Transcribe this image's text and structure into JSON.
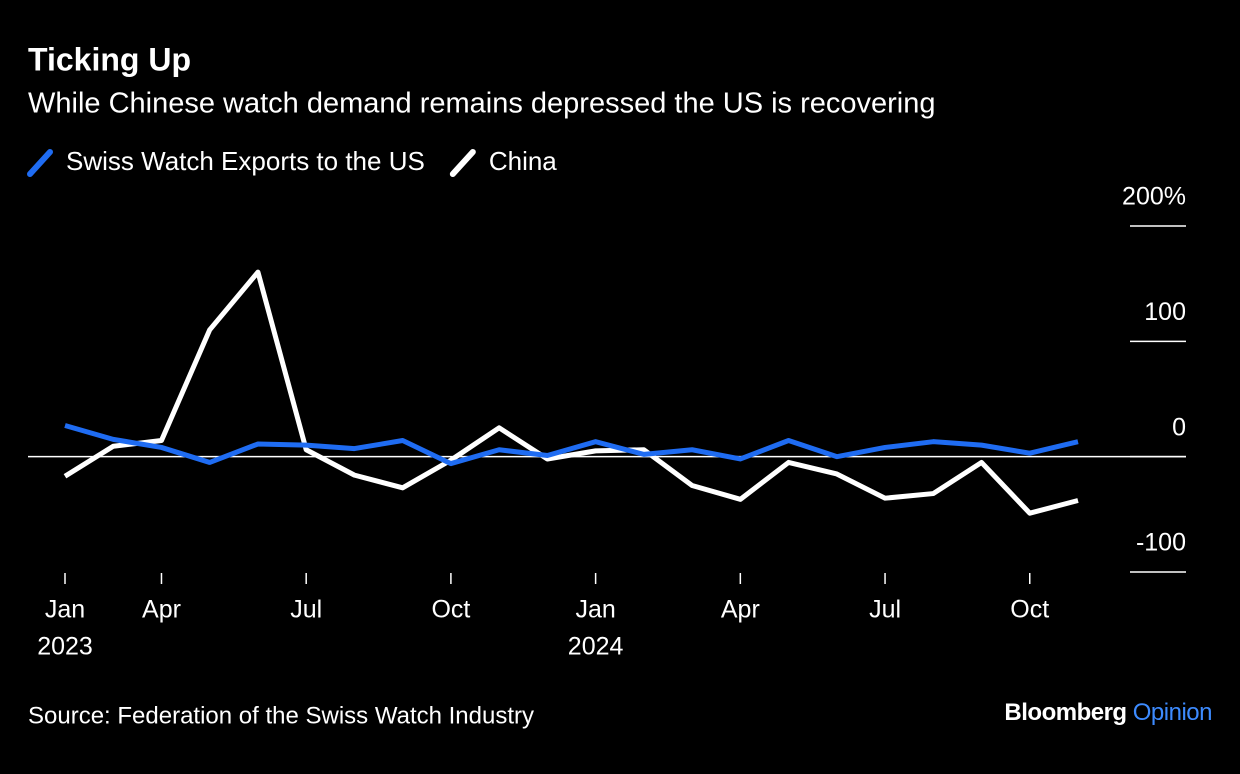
{
  "chart_data": {
    "type": "line",
    "title": "Ticking Up",
    "subtitle": "While Chinese watch demand remains depressed the US is recovering",
    "x": [
      0,
      1,
      2,
      3,
      4,
      5,
      6,
      7,
      8,
      9,
      10,
      11,
      12,
      13,
      14,
      15,
      16,
      17,
      18,
      19,
      20,
      21
    ],
    "xlim": [
      0,
      21
    ],
    "xticks": [
      {
        "value": 0,
        "label": "Jan"
      },
      {
        "value": 2,
        "label": "Apr"
      },
      {
        "value": 5,
        "label": "Jul"
      },
      {
        "value": 8,
        "label": "Oct"
      },
      {
        "value": 11,
        "label": "Jan"
      },
      {
        "value": 14,
        "label": "Apr"
      },
      {
        "value": 17,
        "label": "Jul"
      },
      {
        "value": 20,
        "label": "Oct"
      }
    ],
    "x_sublabels": [
      {
        "value": 0,
        "label": "2023"
      },
      {
        "value": 11,
        "label": "2024"
      }
    ],
    "ylim": [
      -100,
      200
    ],
    "yticks": [
      {
        "value": 200,
        "label": "200%"
      },
      100,
      0,
      -100
    ],
    "series": [
      {
        "name": "Swiss Watch Exports to the US",
        "color": "#1f6cf2",
        "values": [
          27,
          15,
          8,
          -5,
          11,
          10,
          7,
          14,
          -6,
          6,
          1,
          13,
          2,
          6,
          -2,
          14,
          0,
          8,
          13,
          10,
          3,
          13
        ]
      },
      {
        "name": "China",
        "color": "#ffffff",
        "values": [
          -17,
          9,
          14,
          110,
          160,
          6,
          -16,
          -27,
          -3,
          25,
          -2,
          5,
          6,
          -25,
          -37,
          -5,
          -15,
          -36,
          -32,
          -5,
          -49,
          -38
        ]
      }
    ],
    "source": "Source: Federation of the Swiss Watch Industry",
    "brand": "Bloomberg",
    "brand_suffix": "Opinion"
  }
}
